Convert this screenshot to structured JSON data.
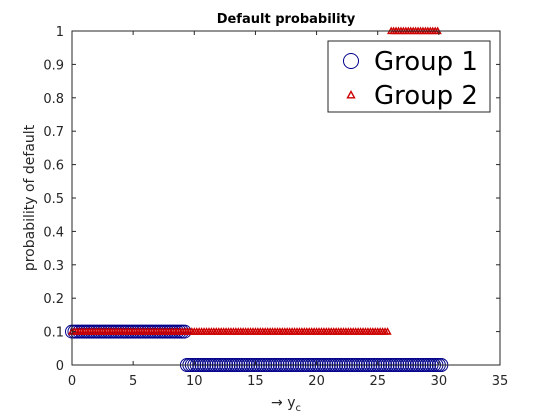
{
  "chart_data": {
    "type": "scatter",
    "title": "Default probability",
    "xlabel": "→ y",
    "xlabel_subscript": "c",
    "ylabel": "probability of default",
    "xlim": [
      0,
      35
    ],
    "ylim": [
      0,
      1
    ],
    "xticks": [
      "0",
      "5",
      "10",
      "15",
      "20",
      "25",
      "30",
      "35"
    ],
    "yticks": [
      "0",
      "0.1",
      "0.2",
      "0.3",
      "0.4",
      "0.5",
      "0.6",
      "0.7",
      "0.8",
      "0.9",
      "1"
    ],
    "grid": false,
    "legend_position": "top-right",
    "series": [
      {
        "name": "Group 1",
        "marker": "circle",
        "color": "#00008b",
        "segments": [
          {
            "x_start": 0,
            "x_end": 9.2,
            "y": 0.1
          },
          {
            "x_start": 9.4,
            "x_end": 30.2,
            "y": 0
          }
        ]
      },
      {
        "name": "Group 2",
        "marker": "triangle",
        "color": "#cc0000",
        "segments": [
          {
            "x_start": 0,
            "x_end": 25.9,
            "y": 0.1
          },
          {
            "x_start": 26.1,
            "x_end": 30.0,
            "y": 1
          }
        ]
      }
    ]
  }
}
